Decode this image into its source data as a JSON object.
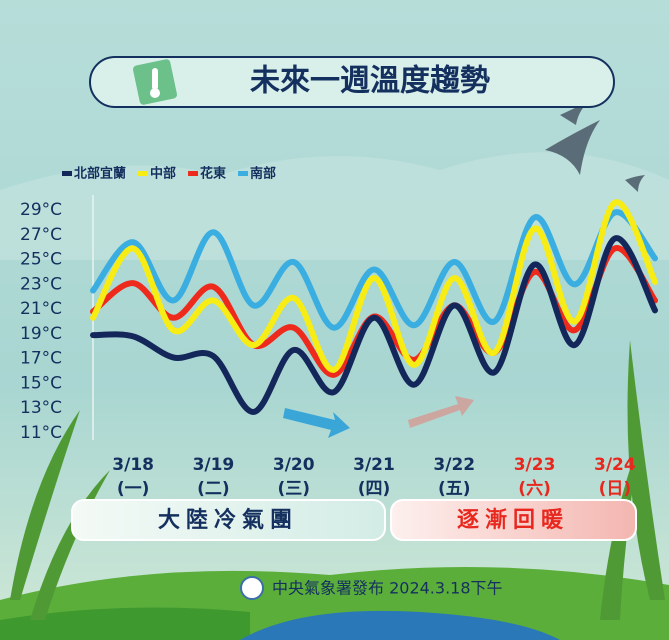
{
  "chart_data": {
    "type": "line",
    "title": "未來一週溫度趨勢",
    "categories": [
      null,
      "3/18",
      null,
      "3/19",
      null,
      "3/20",
      null,
      "3/21",
      null,
      "3/22",
      null,
      "3/23",
      null,
      "3/24",
      null
    ],
    "weekdays": [
      null,
      "(一)",
      null,
      "(二)",
      null,
      "(三)",
      null,
      "(四)",
      null,
      "(五)",
      null,
      "(六)",
      null,
      "(日)",
      null
    ],
    "category_colors": [
      null,
      "#14305e",
      null,
      "#14305e",
      null,
      "#14305e",
      null,
      "#14305e",
      null,
      "#14305e",
      null,
      "#e8281e",
      null,
      "#e8281e",
      null
    ],
    "series": [
      {
        "name": "北部宜蘭",
        "color": "#14275a",
        "values": [
          18.9,
          18.8,
          17.1,
          17.2,
          12.7,
          17.7,
          14.3,
          20.3,
          14.9,
          21.3,
          15.9,
          24.6,
          18.1,
          26.7,
          20.9
        ]
      },
      {
        "name": "中部",
        "color": "#f7ec13",
        "values": [
          20.3,
          25.9,
          19.3,
          21.7,
          18.1,
          21.9,
          16.1,
          23.5,
          16.5,
          23.5,
          17.5,
          27.5,
          20.0,
          29.6,
          23.2
        ]
      },
      {
        "name": "花東",
        "color": "#ee2a1c",
        "values": [
          20.8,
          23.1,
          20.3,
          22.8,
          18.1,
          19.5,
          15.7,
          20.4,
          16.9,
          21.3,
          17.5,
          24.0,
          19.3,
          25.9,
          21.7
        ]
      },
      {
        "name": "南部",
        "color": "#3aaee0",
        "values": [
          22.5,
          26.4,
          21.7,
          27.2,
          21.3,
          24.8,
          19.5,
          24.2,
          19.7,
          24.8,
          20.0,
          28.4,
          23.0,
          28.8,
          25.1
        ]
      }
    ],
    "ylim": [
      11,
      29
    ],
    "yticks": [
      {
        "value": 11,
        "label": "11°C"
      },
      {
        "value": 13,
        "label": "13°C"
      },
      {
        "value": 15,
        "label": "15°C"
      },
      {
        "value": 17,
        "label": "17°C"
      },
      {
        "value": 19,
        "label": "19°C"
      },
      {
        "value": 21,
        "label": "21°C"
      },
      {
        "value": 23,
        "label": "23°C"
      },
      {
        "value": 25,
        "label": "25°C"
      },
      {
        "value": 27,
        "label": "27°C"
      },
      {
        "value": 29,
        "label": "29°C"
      }
    ],
    "annotations": [
      "大陸冷氣團",
      "逐漸回暖"
    ],
    "footer": "中央氣象署發布 2024.3.18下午"
  }
}
